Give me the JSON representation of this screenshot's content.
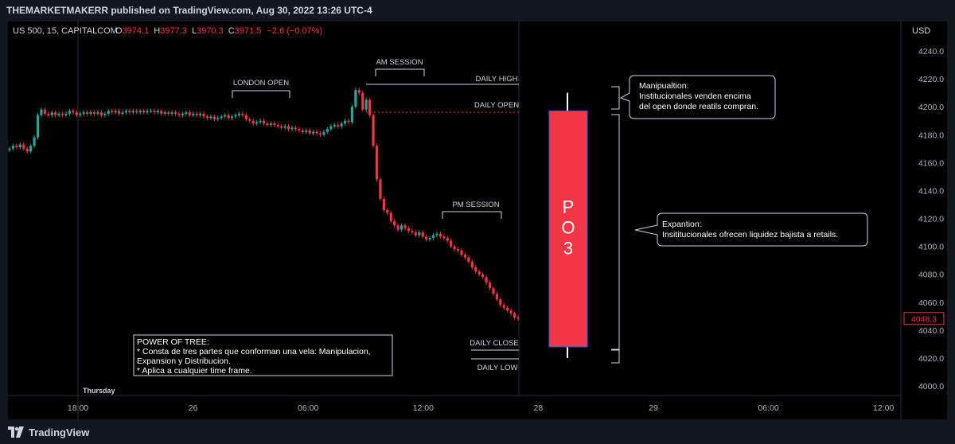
{
  "header": {
    "publisher": "THEMARKETMAKERR published on TradingView.com, Aug 30, 2022 13:26 UTC-4"
  },
  "legend": {
    "symbol": "US 500, 15, CAPITALCOM",
    "open_label": "O",
    "open": "3974.1",
    "high_label": "H",
    "high": "3977.3",
    "low_label": "L",
    "low": "3970.3",
    "close_label": "C",
    "close": "3971.5",
    "change": "−2.6 (−0.07%)"
  },
  "footer": {
    "brand": "TradingView"
  },
  "chart_data": {
    "type": "candlestick",
    "currency": "USD",
    "ylim": [
      3995,
      4250
    ],
    "yticks": [
      "4240.0",
      "4220.0",
      "4200.0",
      "4180.0",
      "4160.0",
      "4140.0",
      "4120.0",
      "4100.0",
      "4080.0",
      "4060.0",
      "4040.0",
      "4020.0",
      "4000.0"
    ],
    "ytick_values": [
      4240,
      4220,
      4200,
      4180,
      4160,
      4140,
      4120,
      4100,
      4080,
      4060,
      4040,
      4020,
      4000
    ],
    "xticks": [
      "18:00",
      "26",
      "06:00",
      "12:00",
      "28",
      "29",
      "06:00",
      "12:00"
    ],
    "xtick_hours": [
      0,
      6,
      12,
      18,
      24,
      30,
      36,
      42
    ],
    "day_label": "Thursday",
    "last_price": "4048.3",
    "last_price_value": 4048.3,
    "daily_open_value": 4196,
    "closes": [
      4170,
      4172,
      4171,
      4173,
      4170,
      4168,
      4172,
      4178,
      4194,
      4198,
      4195,
      4194,
      4196,
      4194,
      4195,
      4194,
      4195,
      4197,
      4196,
      4194,
      4195,
      4196,
      4195,
      4196,
      4195,
      4196,
      4194,
      4195,
      4197,
      4196,
      4197,
      4195,
      4196,
      4197,
      4196,
      4197,
      4196,
      4197,
      4196,
      4197,
      4197,
      4196,
      4197,
      4195,
      4196,
      4195,
      4196,
      4195,
      4194,
      4195,
      4196,
      4194,
      4195,
      4194,
      4195,
      4193,
      4192,
      4193,
      4191,
      4192,
      4193,
      4194,
      4192,
      4193,
      4194,
      4195,
      4194,
      4191,
      4190,
      4188,
      4189,
      4190,
      4188,
      4187,
      4188,
      4187,
      4186,
      4185,
      4186,
      4184,
      4185,
      4184,
      4183,
      4182,
      4183,
      4181,
      4182,
      4181,
      4180,
      4182,
      4184,
      4186,
      4187,
      4186,
      4188,
      4190,
      4189,
      4200,
      4212,
      4210,
      4198,
      4205,
      4194,
      4172,
      4148,
      4134,
      4126,
      4124,
      4118,
      4115,
      4112,
      4115,
      4113,
      4111,
      4110,
      4108,
      4110,
      4107,
      4105,
      4106,
      4108,
      4109,
      4107,
      4106,
      4104,
      4100,
      4098,
      4097,
      4094,
      4092,
      4089,
      4085,
      4082,
      4080,
      4078,
      4074,
      4070,
      4066,
      4062,
      4058,
      4056,
      4054,
      4052,
      4049,
      4048.3
    ],
    "annotations": [
      {
        "text": "LONDON OPEN"
      },
      {
        "text": "AM SESSION"
      },
      {
        "text": "PM SESSION"
      },
      {
        "text": "DAILY HIGH"
      },
      {
        "text": "DAILY OPEN"
      },
      {
        "text": "DAILY CLOSE"
      },
      {
        "text": "DAILY LOW"
      }
    ],
    "big_candle": {
      "label": "PO3",
      "open": 4197,
      "close": 4028,
      "high": 4210,
      "low": 4020,
      "color": "#f23645"
    },
    "callouts": [
      {
        "lines": [
          "Manipualtion:",
          "Institucionales venden encima",
          "del open donde reatils compran."
        ]
      },
      {
        "lines": [
          "Expantion:",
          "Insititucionales ofrecen liquidez bajista a retails."
        ]
      }
    ],
    "note": {
      "lines": [
        "POWER OF TREE:",
        "* Consta de tres partes que conforman una vela: Manipulacion,",
        "Expansion y Distribucion.",
        "* Aplica a cualquier time frame."
      ]
    },
    "colors": {
      "up": "#26a69a",
      "down": "#f23645",
      "axis_text": "#b2b5be",
      "open_line": "#f23645"
    }
  }
}
